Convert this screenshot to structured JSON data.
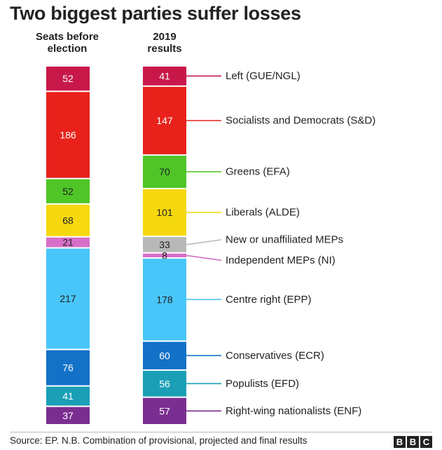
{
  "title": "Two biggest parties suffer losses",
  "column_headers": {
    "before": [
      "Seats before",
      "election"
    ],
    "after": [
      "2019",
      "results"
    ]
  },
  "chart_data": {
    "type": "bar",
    "stacked": true,
    "orientation": "vertical",
    "title": "Two biggest parties suffer losses",
    "categories": [
      "Seats before election",
      "2019 results"
    ],
    "series": [
      {
        "name": "Left (GUE/NGL)",
        "color": "#c8184a",
        "values": [
          52,
          41
        ]
      },
      {
        "name": "Socialists and Democrats (S&D)",
        "color": "#e8221b",
        "values": [
          186,
          147
        ]
      },
      {
        "name": "Greens (EFA)",
        "color": "#4fc527",
        "values": [
          52,
          70
        ]
      },
      {
        "name": "Liberals (ALDE)",
        "color": "#f6d80f",
        "values": [
          68,
          101
        ]
      },
      {
        "name": "New or unaffiliated MEPs",
        "color": "#b8b8b8",
        "values": [
          null,
          33
        ]
      },
      {
        "name": "Independent MEPs (NI)",
        "color": "#d76fc9",
        "values": [
          21,
          8
        ]
      },
      {
        "name": "Centre right (EPP)",
        "color": "#48c6fa",
        "values": [
          217,
          178
        ]
      },
      {
        "name": "Conservatives (ECR)",
        "color": "#1372c8",
        "values": [
          76,
          60
        ]
      },
      {
        "name": "Populists (EFD)",
        "color": "#1a9fb6",
        "values": [
          41,
          56
        ]
      },
      {
        "name": "Right-wing nationalists (ENF)",
        "color": "#7b2e91",
        "values": [
          37,
          57
        ]
      }
    ],
    "legend": "right"
  },
  "footer": {
    "source": "Source: EP. N.B. Combination of provisional, projected and final results",
    "logo": [
      "B",
      "B",
      "C"
    ]
  }
}
